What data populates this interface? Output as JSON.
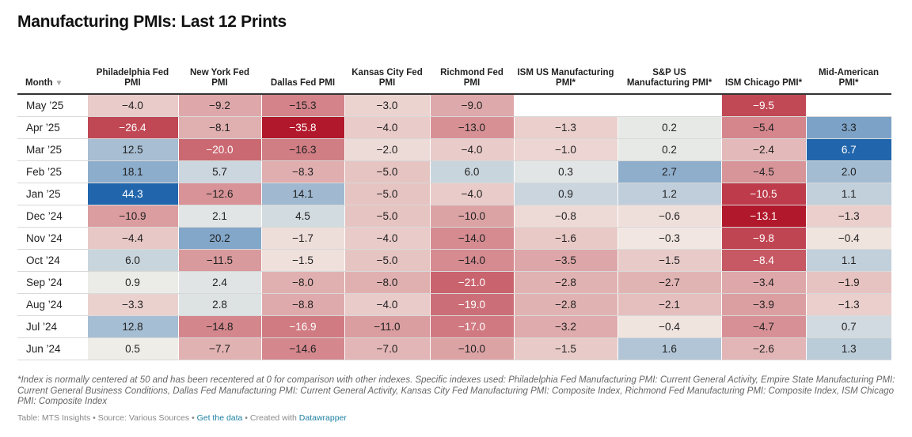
{
  "title": "Manufacturing PMIs: Last 12 Prints",
  "chart_data": {
    "type": "table",
    "title": "Manufacturing PMIs: Last 12 Prints",
    "month_header": "Month",
    "sort_icon": "sort-down-triangle-icon",
    "columns": [
      "Philadelphia Fed PMI",
      "New York Fed PMI",
      "Dallas Fed PMI",
      "Kansas City Fed PMI",
      "Richmond Fed PMI",
      "ISM US Manufacturing PMI*",
      "S&P US Manufacturing PMI*",
      "ISM Chicago PMI*",
      "Mid-American PMI*"
    ],
    "rows": [
      {
        "month": "May ’25",
        "values": [
          -4.0,
          -9.2,
          -15.3,
          -3.0,
          -9.0,
          null,
          null,
          -9.5,
          null
        ]
      },
      {
        "month": "Apr ’25",
        "values": [
          -26.4,
          -8.1,
          -35.8,
          -4.0,
          -13.0,
          -1.3,
          0.2,
          -5.4,
          3.3
        ]
      },
      {
        "month": "Mar ’25",
        "values": [
          12.5,
          -20.0,
          -16.3,
          -2.0,
          -4.0,
          -1.0,
          0.2,
          -2.4,
          6.7
        ]
      },
      {
        "month": "Feb ’25",
        "values": [
          18.1,
          5.7,
          -8.3,
          -5.0,
          6.0,
          0.3,
          2.7,
          -4.5,
          2.0
        ]
      },
      {
        "month": "Jan ’25",
        "values": [
          44.3,
          -12.6,
          14.1,
          -5.0,
          -4.0,
          0.9,
          1.2,
          -10.5,
          1.1
        ]
      },
      {
        "month": "Dec ’24",
        "values": [
          -10.9,
          2.1,
          4.5,
          -5.0,
          -10.0,
          -0.8,
          -0.6,
          -13.1,
          -1.3
        ]
      },
      {
        "month": "Nov ’24",
        "values": [
          -4.4,
          20.2,
          -1.7,
          -4.0,
          -14.0,
          -1.6,
          -0.3,
          -9.8,
          -0.4
        ]
      },
      {
        "month": "Oct ’24",
        "values": [
          6.0,
          -11.5,
          -1.5,
          -5.0,
          -14.0,
          -3.5,
          -1.5,
          -8.4,
          1.1
        ]
      },
      {
        "month": "Sep ’24",
        "values": [
          0.9,
          2.4,
          -8.0,
          -8.0,
          -21.0,
          -2.8,
          -2.7,
          -3.4,
          -1.9
        ]
      },
      {
        "month": "Aug ’24",
        "values": [
          -3.3,
          2.8,
          -8.8,
          -4.0,
          -19.0,
          -2.8,
          -2.1,
          -3.9,
          -1.3
        ]
      },
      {
        "month": "Jul ’24",
        "values": [
          12.8,
          -14.8,
          -16.9,
          -11.0,
          -17.0,
          -3.2,
          -0.4,
          -4.7,
          0.7
        ]
      },
      {
        "month": "Jun ’24",
        "values": [
          0.5,
          -7.7,
          -14.6,
          -7.0,
          -10.0,
          -1.5,
          1.6,
          -2.6,
          1.3
        ]
      }
    ],
    "color_scale": {
      "negative": "#b2182b",
      "neutral": "#f4f1ea",
      "positive": "#2166ac",
      "group_a_domain": [
        -35.8,
        44.3
      ],
      "group_b_domain": [
        -13.1,
        6.7
      ]
    }
  },
  "footnote": "*Index is normally centered at 50 and has been recentered at 0 for comparison with other indexes. Specific indexes used: Philadelphia Fed Manufacturing PMI: Current General Activity, Empire State Manufacturing PMI: Current General Business Conditions, Dallas Fed Manufacturing PMI: Current General Activity, Kansas City Fed Manufacturing PMI: Composite Index, Richmond Fed Manufacturing PMI: Composite Index, ISM Chicago PMI: Composite Index",
  "source": {
    "prefix": "Table: MTS Insights • Source: Various Sources • ",
    "get_data": "Get the data",
    "middle": " • Created with ",
    "tool": "Datawrapper"
  }
}
